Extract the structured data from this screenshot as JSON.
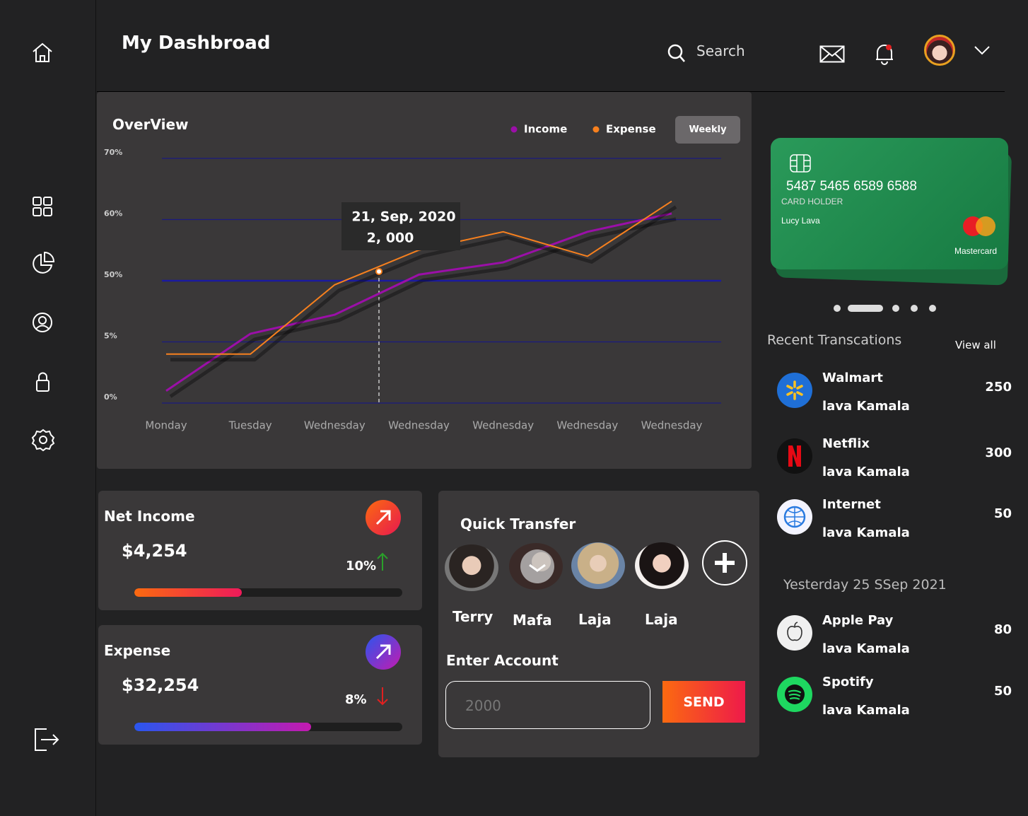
{
  "header": {
    "title": "My Dashbroad",
    "search": "Search"
  },
  "overview": {
    "title": "OverView",
    "button": "Weekly",
    "tooltip": {
      "date": "21, Sep, 2020",
      "value": "2, 000"
    },
    "chart_data": {
      "type": "line",
      "categories": [
        "Monday",
        "Tuesday",
        "Wednesday",
        "Wednesday",
        "Wednesday",
        "Wednesday",
        "Wednesday"
      ],
      "series": [
        {
          "name": "Income",
          "color": "#9b0fa8",
          "values": [
            1,
            11,
            25,
            51,
            53,
            58,
            61
          ]
        },
        {
          "name": "Expense",
          "color": "#f7801e",
          "values": [
            4,
            4,
            47,
            55,
            58,
            54,
            63
          ]
        }
      ],
      "ylim": [
        0,
        70
      ],
      "yticks": [
        {
          "value": 0,
          "label": "0%"
        },
        {
          "value": 5,
          "label": "5%"
        },
        {
          "value": 50,
          "label": "50%"
        },
        {
          "value": 60,
          "label": "60%"
        },
        {
          "value": 70,
          "label": "70%"
        }
      ],
      "grid": true,
      "legend": "top-right"
    }
  },
  "card": {
    "number": "5487 5465 6589  6588",
    "holder_label": "CARD HOLDER",
    "holder": "Lucy Lava",
    "brand": "Mastercard"
  },
  "transactions": {
    "title": "Recent  Transcations",
    "view_all": "View all",
    "recent": [
      {
        "name": "Walmart",
        "person": "lava  Kamala",
        "amount": 250
      },
      {
        "name": "Netflix",
        "person": "lava  Kamala",
        "amount": 300
      },
      {
        "name": "Internet",
        "person": "lava  Kamala",
        "amount": 50
      }
    ],
    "yesterday_label": "Yesterday 25 SSep 2021",
    "yesterday": [
      {
        "name": "Apple  Pay",
        "person": "lava  Kamala",
        "amount": 80
      },
      {
        "name": "Spotify",
        "person": "lava  Kamala",
        "amount": 50
      }
    ]
  },
  "net_income": {
    "title": "Net Income",
    "amount": "$4,254",
    "change": "10%",
    "progress": 40
  },
  "expense": {
    "title": "Expense",
    "amount": "$32,254",
    "change": "8%",
    "progress": 66
  },
  "quick_transfer": {
    "title": "Quick  Transfer",
    "contacts": [
      "Terry",
      "Mafa",
      "Laja",
      "Laja"
    ],
    "account_label": "Enter Account",
    "input_placeholder": "2000",
    "send": "SEND"
  }
}
